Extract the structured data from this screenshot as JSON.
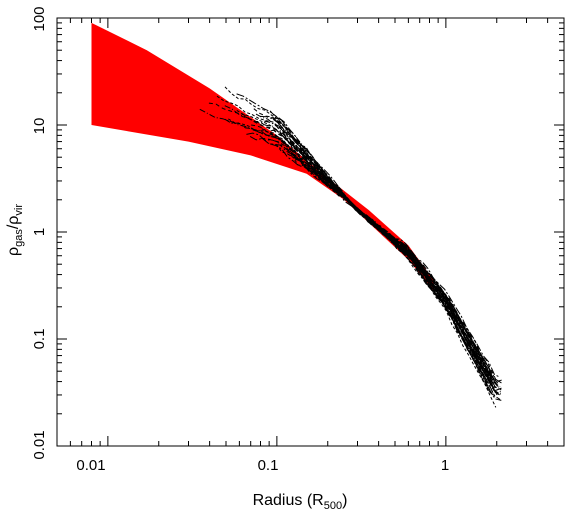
{
  "chart_data": {
    "type": "line",
    "title": "",
    "xlabel": {
      "main": "Radius (R",
      "sub": "500",
      "close": ")"
    },
    "ylabel": {
      "rho1": "ρ",
      "sub1": "gas",
      "slash": "/",
      "rho2": "ρ",
      "sub2": "vir"
    },
    "xscale": "log",
    "yscale": "log",
    "xlim": [
      0.005,
      5
    ],
    "ylim": [
      0.01,
      100
    ],
    "x_ticks": [
      0.01,
      0.1,
      1
    ],
    "x_tick_labels": [
      "0.01",
      "0.1",
      "1"
    ],
    "y_ticks": [
      0.01,
      0.1,
      1,
      10,
      100
    ],
    "y_tick_labels": [
      "0.01",
      "0.1",
      "1",
      "10",
      "100"
    ],
    "grid": false,
    "legend": "none",
    "band": {
      "color": "#ff0000",
      "upper": [
        [
          0.008,
          90
        ],
        [
          0.017,
          50
        ],
        [
          0.04,
          22
        ],
        [
          0.1,
          8
        ],
        [
          0.2,
          3.2
        ],
        [
          0.35,
          1.6
        ],
        [
          0.6,
          0.75
        ],
        [
          0.85,
          0.35
        ]
      ],
      "lower": [
        [
          0.008,
          10
        ],
        [
          0.03,
          7
        ],
        [
          0.07,
          5.2
        ],
        [
          0.15,
          3.5
        ],
        [
          0.25,
          2.0
        ],
        [
          0.4,
          1.0
        ],
        [
          0.6,
          0.55
        ],
        [
          0.85,
          0.28
        ]
      ]
    },
    "profile_color": "#000000",
    "profile_count": 40,
    "profile_x_range": [
      0.03,
      2.2
    ]
  }
}
